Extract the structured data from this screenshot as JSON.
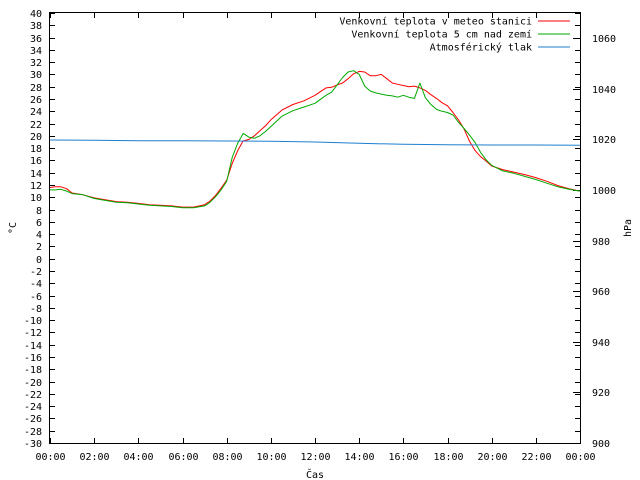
{
  "chart_data": {
    "type": "line",
    "xlabel": "Čas",
    "ylabel_left": "°C",
    "ylabel_right": "hPa",
    "x_ticks": [
      "00:00",
      "02:00",
      "04:00",
      "06:00",
      "08:00",
      "10:00",
      "12:00",
      "14:00",
      "16:00",
      "18:00",
      "20:00",
      "22:00",
      "00:00"
    ],
    "ylim_left": [
      -30,
      40
    ],
    "ylim_right": [
      900,
      1070
    ],
    "y_ticks_left": [
      40,
      38,
      36,
      34,
      32,
      30,
      28,
      26,
      24,
      22,
      20,
      18,
      16,
      14,
      12,
      10,
      8,
      6,
      4,
      2,
      0,
      -2,
      -4,
      -6,
      -8,
      -10,
      -12,
      -14,
      -16,
      -18,
      -20,
      -22,
      -24,
      -26,
      -28,
      -30
    ],
    "y_ticks_right": [
      1060,
      1040,
      1020,
      1000,
      980,
      960,
      940,
      920,
      900
    ],
    "grid": false,
    "legend_position": "top-right",
    "series": [
      {
        "name": "Venkovní teplota v meteo stanici",
        "color": "#ff0000",
        "axis": "left",
        "x": [
          0,
          0.25,
          0.5,
          0.75,
          1,
          1.5,
          2,
          2.5,
          3,
          3.5,
          4,
          4.5,
          5,
          5.5,
          6,
          6.5,
          7,
          7.25,
          7.5,
          7.75,
          8,
          8.25,
          8.5,
          8.75,
          9,
          9.25,
          9.5,
          9.75,
          10,
          10.5,
          11,
          11.5,
          12,
          12.25,
          12.5,
          12.75,
          13,
          13.25,
          13.5,
          13.75,
          14,
          14.25,
          14.5,
          14.75,
          15,
          15.25,
          15.5,
          15.75,
          16,
          16.25,
          16.5,
          16.75,
          17,
          17.25,
          17.5,
          17.75,
          18,
          18.25,
          18.5,
          18.75,
          19,
          19.25,
          19.5,
          19.75,
          20,
          20.5,
          21,
          21.5,
          22,
          22.5,
          23,
          23.5,
          24
        ],
        "y": [
          11.6,
          11.7,
          11.7,
          11.4,
          10.7,
          10.4,
          9.9,
          9.6,
          9.3,
          9.2,
          9.0,
          8.8,
          8.7,
          8.6,
          8.4,
          8.4,
          8.8,
          9.4,
          10.3,
          11.5,
          12.8,
          15.5,
          17.6,
          19.2,
          19.4,
          20.0,
          20.8,
          21.6,
          22.6,
          24.2,
          25.1,
          25.7,
          26.6,
          27.2,
          27.8,
          27.9,
          28.3,
          28.6,
          29.3,
          30.1,
          30.5,
          30.4,
          29.8,
          29.8,
          30.0,
          29.3,
          28.6,
          28.4,
          28.2,
          28.0,
          28.1,
          27.8,
          27.4,
          26.7,
          26.1,
          25.4,
          24.9,
          23.8,
          22.6,
          21.1,
          19.1,
          17.6,
          16.6,
          15.9,
          15.1,
          14.5,
          14.1,
          13.7,
          13.2,
          12.6,
          11.9,
          11.4,
          11.0
        ]
      },
      {
        "name": "Venkovní teplota 5 cm nad zemí",
        "color": "#00aa00",
        "axis": "left",
        "x": [
          0,
          0.25,
          0.5,
          0.75,
          1,
          1.5,
          2,
          2.5,
          3,
          3.5,
          4,
          4.5,
          5,
          5.5,
          6,
          6.5,
          7,
          7.25,
          7.5,
          7.75,
          8,
          8.25,
          8.5,
          8.75,
          9,
          9.25,
          9.5,
          9.75,
          10,
          10.5,
          11,
          11.5,
          12,
          12.5,
          12.75,
          13,
          13.25,
          13.5,
          13.75,
          14,
          14.25,
          14.5,
          14.75,
          15,
          15.25,
          15.5,
          15.75,
          16,
          16.25,
          16.5,
          16.75,
          17,
          17.25,
          17.5,
          17.75,
          18,
          18.25,
          18.5,
          18.75,
          19,
          19.25,
          19.5,
          19.75,
          20,
          20.5,
          21,
          21.5,
          22,
          22.5,
          23,
          23.5,
          24
        ],
        "y": [
          11.2,
          11.2,
          11.3,
          11.0,
          10.6,
          10.4,
          9.8,
          9.5,
          9.2,
          9.1,
          8.9,
          8.7,
          8.6,
          8.5,
          8.3,
          8.3,
          8.6,
          9.2,
          10.1,
          11.2,
          12.6,
          16.5,
          18.8,
          20.4,
          19.8,
          19.6,
          20.0,
          20.7,
          21.5,
          23.2,
          24.1,
          24.7,
          25.3,
          26.6,
          27.1,
          28.3,
          29.5,
          30.4,
          30.6,
          30.0,
          28.1,
          27.3,
          27.0,
          26.8,
          26.6,
          26.5,
          26.3,
          26.6,
          26.3,
          26.1,
          28.6,
          26.2,
          25.1,
          24.3,
          24.0,
          23.8,
          23.4,
          22.2,
          21.2,
          20.1,
          18.9,
          17.3,
          16.1,
          15.2,
          14.3,
          13.9,
          13.4,
          12.9,
          12.3,
          11.7,
          11.3,
          11.0
        ]
      },
      {
        "name": "Atmosférický tlak",
        "color": "#1f7fcf",
        "axis": "right",
        "x": [
          0,
          2,
          4,
          6,
          8,
          10,
          12,
          14,
          16,
          18,
          20,
          22,
          24
        ],
        "y": [
          1019.8,
          1019.7,
          1019.5,
          1019.5,
          1019.4,
          1019.3,
          1019.0,
          1018.5,
          1018.1,
          1017.9,
          1017.8,
          1017.8,
          1017.7
        ]
      }
    ]
  }
}
